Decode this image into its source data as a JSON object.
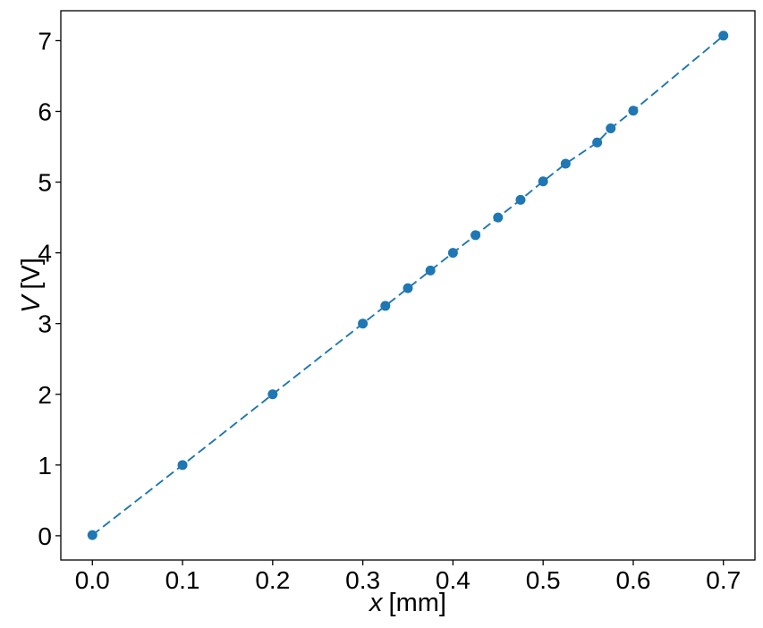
{
  "figure": {
    "background": "#ffffff"
  },
  "chart_data": {
    "type": "scatter",
    "title": "",
    "xlabel": "x [mm]",
    "xlabel_var": "x",
    "xlabel_unit": "[mm]",
    "ylabel": "V [V]",
    "ylabel_var": "V",
    "ylabel_unit": "[V]",
    "x": [
      0.0,
      0.1,
      0.2,
      0.3,
      0.325,
      0.35,
      0.375,
      0.4,
      0.425,
      0.45,
      0.475,
      0.5,
      0.525,
      0.56,
      0.575,
      0.6,
      0.7
    ],
    "y": [
      0.01,
      1.0,
      2.0,
      3.0,
      3.25,
      3.5,
      3.75,
      4.0,
      4.25,
      4.5,
      4.75,
      5.01,
      5.26,
      5.56,
      5.76,
      6.01,
      7.07
    ],
    "xlim": [
      -0.035,
      0.735
    ],
    "ylim": [
      -0.343,
      7.423
    ],
    "xticks": [
      0.0,
      0.1,
      0.2,
      0.3,
      0.4,
      0.5,
      0.6,
      0.7
    ],
    "xtick_labels": [
      "0.0",
      "0.1",
      "0.2",
      "0.3",
      "0.4",
      "0.5",
      "0.6",
      "0.7"
    ],
    "yticks": [
      0,
      1,
      2,
      3,
      4,
      5,
      6,
      7
    ],
    "ytick_labels": [
      "0",
      "1",
      "2",
      "3",
      "4",
      "5",
      "6",
      "7"
    ],
    "line_style": "dashed",
    "marker": "circle",
    "series_color": "#1f77b4",
    "axis_color": "#000000",
    "grid": false,
    "legend": null
  }
}
